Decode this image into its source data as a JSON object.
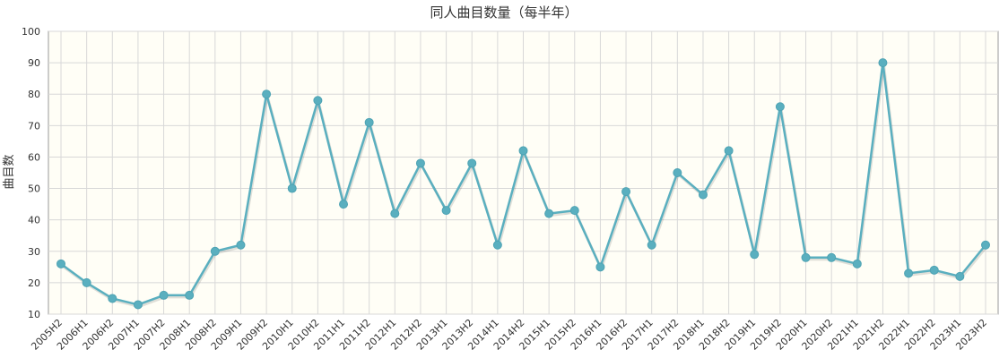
{
  "chart_data": {
    "type": "line",
    "title": "同人曲目数量（每半年）",
    "xlabel": "",
    "ylabel": "曲目数",
    "ylim": [
      10,
      100
    ],
    "yticks": [
      10,
      20,
      30,
      40,
      50,
      60,
      70,
      80,
      90,
      100
    ],
    "grid": true,
    "categories": [
      "2005H2",
      "2006H1",
      "2006H2",
      "2007H1",
      "2007H2",
      "2008H1",
      "2008H2",
      "2009H1",
      "2009H2",
      "2010H1",
      "2010H2",
      "2011H1",
      "2011H2",
      "2012H1",
      "2012H2",
      "2013H1",
      "2013H2",
      "2014H1",
      "2014H2",
      "2015H1",
      "2015H2",
      "2016H1",
      "2016H2",
      "2017H1",
      "2017H2",
      "2018H1",
      "2018H2",
      "2019H1",
      "2019H2",
      "2020H1",
      "2020H2",
      "2021H1",
      "2021H2",
      "2022H1",
      "2022H2",
      "2023H1",
      "2023H2"
    ],
    "values": [
      26,
      20,
      15,
      13,
      16,
      16,
      30,
      32,
      80,
      50,
      78,
      45,
      71,
      42,
      58,
      43,
      58,
      32,
      62,
      42,
      43,
      25,
      49,
      32,
      55,
      48,
      62,
      29,
      76,
      28,
      28,
      26,
      90,
      23,
      24,
      22,
      32
    ],
    "colors": {
      "series": "#5aafbf",
      "plot_background": "#fffef6",
      "grid": "#d8d8d8"
    }
  }
}
